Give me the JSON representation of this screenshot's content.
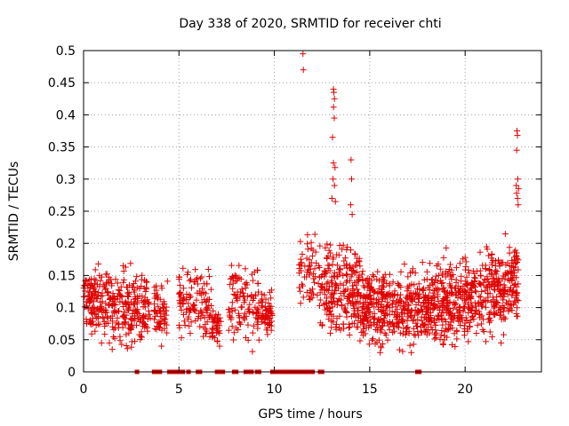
{
  "chart_data": {
    "type": "scatter",
    "title": "Day 338 of 2020, SRMTID for receiver chti",
    "xlabel": "GPS time / hours",
    "ylabel": "SRMTID / TECUs",
    "xlim": [
      0,
      24
    ],
    "ylim": [
      0,
      0.5
    ],
    "xticks": [
      0,
      5,
      10,
      15,
      20
    ],
    "xtick_labels": [
      "0",
      "5",
      "10",
      "15",
      "20"
    ],
    "yticks": [
      0,
      0.05,
      0.1,
      0.15,
      0.2,
      0.25,
      0.3,
      0.35,
      0.4,
      0.45,
      0.5
    ],
    "ytick_labels": [
      "0",
      "0.05",
      "0.1",
      "0.15",
      "0.2",
      "0.25",
      "0.3",
      "0.35",
      "0.4",
      "0.45",
      "0.5"
    ],
    "grid": true,
    "legend": false,
    "marker_color": "#e00000",
    "marker": "plus",
    "series": [
      {
        "name": "SRMTID",
        "clusters": [
          {
            "x0": 0.0,
            "x1": 1.5,
            "n": 150,
            "ymin": 0.045,
            "ymax": 0.2
          },
          {
            "x0": 1.5,
            "x1": 3.5,
            "n": 190,
            "ymin": 0.035,
            "ymax": 0.19
          },
          {
            "x0": 3.7,
            "x1": 4.4,
            "n": 60,
            "ymin": 0.04,
            "ymax": 0.17
          },
          {
            "x0": 5.0,
            "x1": 6.7,
            "n": 120,
            "ymin": 0.045,
            "ymax": 0.2
          },
          {
            "x0": 6.7,
            "x1": 7.2,
            "n": 40,
            "ymin": 0.04,
            "ymax": 0.13
          },
          {
            "x0": 7.6,
            "x1": 9.2,
            "n": 110,
            "ymin": 0.03,
            "ymax": 0.205
          },
          {
            "x0": 9.3,
            "x1": 9.9,
            "n": 55,
            "ymin": 0.055,
            "ymax": 0.15
          },
          {
            "x0": 11.3,
            "x1": 12.4,
            "n": 60,
            "ymin": 0.08,
            "ymax": 0.255
          },
          {
            "x0": 12.4,
            "x1": 14.5,
            "n": 230,
            "ymin": 0.045,
            "ymax": 0.245
          },
          {
            "x0": 14.5,
            "x1": 18.2,
            "n": 420,
            "ymin": 0.03,
            "ymax": 0.2
          },
          {
            "x0": 18.2,
            "x1": 21.0,
            "n": 330,
            "ymin": 0.035,
            "ymax": 0.215
          },
          {
            "x0": 21.0,
            "x1": 22.3,
            "n": 150,
            "ymin": 0.045,
            "ymax": 0.235
          },
          {
            "x0": 22.3,
            "x1": 22.8,
            "n": 70,
            "ymin": 0.06,
            "ymax": 0.24
          }
        ],
        "points": [
          [
            11.5,
            0.495
          ],
          [
            11.52,
            0.47
          ],
          [
            13.1,
            0.44
          ],
          [
            13.12,
            0.435
          ],
          [
            13.15,
            0.425
          ],
          [
            13.1,
            0.412
          ],
          [
            13.14,
            0.395
          ],
          [
            13.05,
            0.365
          ],
          [
            13.1,
            0.325
          ],
          [
            13.18,
            0.318
          ],
          [
            13.08,
            0.3
          ],
          [
            13.15,
            0.29
          ],
          [
            13.02,
            0.27
          ],
          [
            13.2,
            0.265
          ],
          [
            14.02,
            0.33
          ],
          [
            14.05,
            0.3
          ],
          [
            14.0,
            0.26
          ],
          [
            14.08,
            0.245
          ],
          [
            22.72,
            0.375
          ],
          [
            22.74,
            0.368
          ],
          [
            22.7,
            0.345
          ],
          [
            22.76,
            0.3
          ],
          [
            22.68,
            0.29
          ],
          [
            22.8,
            0.285
          ],
          [
            22.7,
            0.278
          ],
          [
            22.75,
            0.27
          ],
          [
            22.78,
            0.26
          ],
          [
            2.8,
            0.0
          ],
          [
            3.7,
            0.0
          ],
          [
            3.8,
            0.0
          ],
          [
            3.9,
            0.0
          ],
          [
            4.0,
            0.0
          ],
          [
            4.5,
            0.0
          ],
          [
            4.7,
            0.0
          ],
          [
            4.8,
            0.0
          ],
          [
            4.9,
            0.0
          ],
          [
            5.1,
            0.0
          ],
          [
            5.2,
            0.0
          ],
          [
            5.5,
            0.0
          ],
          [
            6.0,
            0.0
          ],
          [
            6.1,
            0.0
          ],
          [
            7.0,
            0.0
          ],
          [
            7.2,
            0.0
          ],
          [
            7.3,
            0.0
          ],
          [
            7.9,
            0.0
          ],
          [
            8.0,
            0.0
          ],
          [
            8.5,
            0.0
          ],
          [
            8.6,
            0.0
          ],
          [
            8.8,
            0.0
          ],
          [
            9.1,
            0.0
          ],
          [
            9.2,
            0.0
          ],
          [
            9.9,
            0.0
          ],
          [
            10.1,
            0.0
          ],
          [
            10.3,
            0.0
          ],
          [
            10.5,
            0.0
          ],
          [
            10.7,
            0.0
          ],
          [
            10.9,
            0.0
          ],
          [
            11.1,
            0.0
          ],
          [
            11.3,
            0.0
          ],
          [
            11.5,
            0.0
          ],
          [
            11.6,
            0.0
          ],
          [
            11.7,
            0.0
          ],
          [
            11.8,
            0.0
          ],
          [
            11.9,
            0.0
          ],
          [
            12.0,
            0.0
          ],
          [
            12.4,
            0.0
          ],
          [
            12.5,
            0.0
          ],
          [
            17.5,
            0.0
          ],
          [
            17.6,
            0.0
          ]
        ]
      }
    ]
  }
}
